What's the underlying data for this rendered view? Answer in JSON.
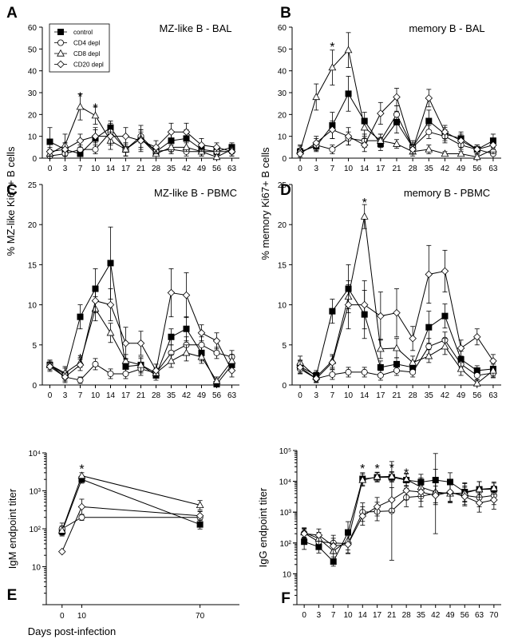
{
  "chart_data": [
    {
      "panel": "A",
      "type": "line",
      "title": "MZ-like B - BAL",
      "xlabel": "",
      "ylabel": "",
      "x_scale": "categorical",
      "x": [
        "0",
        "3",
        "7",
        "10",
        "14",
        "17",
        "21",
        "28",
        "35",
        "42",
        "49",
        "56",
        "63"
      ],
      "ylim": [
        0,
        60
      ],
      "yticks": [
        0,
        10,
        20,
        30,
        40,
        50,
        60
      ],
      "legend": {
        "position": "top-left",
        "entries": [
          "control",
          "CD4 depl",
          "CD8 depl",
          "CD20 depl"
        ]
      },
      "series": [
        {
          "name": "control",
          "marker": "square-filled",
          "values": [
            7.5,
            4,
            2,
            9,
            14,
            4,
            9,
            3,
            8,
            9,
            4,
            3,
            5
          ],
          "err": [
            6.5,
            3,
            2,
            5,
            3,
            3,
            6,
            2,
            4,
            4,
            2,
            2,
            2
          ]
        },
        {
          "name": "CD4 depl",
          "marker": "circle-open",
          "values": [
            1,
            2,
            4,
            4,
            12,
            4,
            10,
            3,
            4,
            3,
            3,
            3,
            3
          ],
          "err": [
            1,
            2,
            2,
            2,
            4,
            3,
            3,
            2,
            2,
            2,
            2,
            2,
            2
          ]
        },
        {
          "name": "CD8 depl",
          "marker": "triangle-open",
          "values": [
            2,
            6,
            23.5,
            19.5,
            8,
            4,
            9,
            2,
            5,
            5,
            3,
            0.5,
            4
          ],
          "err": [
            2,
            5,
            6,
            4,
            4,
            3,
            4,
            2,
            2,
            2,
            2,
            1,
            2
          ]
        },
        {
          "name": "CD20 depl",
          "marker": "diamond-open",
          "values": [
            3,
            4,
            8,
            10,
            10,
            10,
            8,
            5,
            12,
            12,
            6,
            5,
            3
          ],
          "err": [
            2,
            3,
            3,
            3,
            4,
            4,
            4,
            3,
            4,
            4,
            3,
            2,
            2
          ]
        }
      ],
      "annotations": [
        {
          "text": "*",
          "x": "7",
          "y": 29
        },
        {
          "text": "*",
          "x": "10",
          "y": 24
        }
      ]
    },
    {
      "panel": "B",
      "type": "line",
      "title": "memory B - BAL",
      "xlabel": "",
      "ylabel": "",
      "x_scale": "categorical",
      "x": [
        "0",
        "3",
        "7",
        "10",
        "14",
        "17",
        "21",
        "28",
        "35",
        "42",
        "49",
        "56",
        "63"
      ],
      "ylim": [
        0,
        60
      ],
      "yticks": [
        0,
        10,
        20,
        30,
        40,
        50,
        60
      ],
      "series": [
        {
          "name": "control",
          "marker": "square-filled",
          "values": [
            3,
            5.5,
            15,
            29.5,
            17,
            6.5,
            16.5,
            5,
            17,
            11,
            9,
            4,
            8
          ],
          "err": [
            3,
            2,
            6,
            8,
            4,
            3,
            5,
            3,
            5,
            3,
            3,
            2,
            3
          ]
        },
        {
          "name": "CD4 depl",
          "marker": "circle-open",
          "values": [
            2.5,
            6,
            4,
            9,
            8,
            8,
            20,
            5,
            12,
            10,
            6,
            4,
            2
          ],
          "err": [
            2,
            3,
            2,
            3,
            3,
            3,
            4,
            2,
            3,
            3,
            2,
            2,
            2
          ]
        },
        {
          "name": "CD8 depl",
          "marker": "triangle-open",
          "values": [
            3.5,
            28,
            41.5,
            49.5,
            14,
            8,
            6.5,
            3,
            4,
            2,
            2,
            0.5,
            4
          ],
          "err": [
            2,
            6,
            8,
            8,
            4,
            3,
            2,
            2,
            2,
            1,
            1,
            1,
            2
          ]
        },
        {
          "name": "CD20 depl",
          "marker": "diamond-open",
          "values": [
            2,
            7,
            13,
            10,
            6,
            20.5,
            28,
            4,
            27.5,
            12,
            8,
            4,
            6
          ],
          "err": [
            2,
            3,
            4,
            4,
            3,
            5,
            4,
            2,
            4,
            3,
            3,
            2,
            2
          ]
        }
      ],
      "annotations": [
        {
          "text": "*",
          "x": "7",
          "y": 52
        }
      ]
    },
    {
      "panel": "C",
      "type": "line",
      "title": "MZ-like B - PBMC",
      "xlabel": "",
      "ylabel": "",
      "x_scale": "categorical",
      "x": [
        "0",
        "3",
        "7",
        "10",
        "14",
        "17",
        "21",
        "28",
        "35",
        "42",
        "49",
        "56",
        "63"
      ],
      "ylim": [
        0,
        25
      ],
      "yticks": [
        0,
        5,
        10,
        15,
        20,
        25
      ],
      "series": [
        {
          "name": "control",
          "marker": "square-filled",
          "values": [
            2.5,
            1.3,
            8.5,
            12,
            15.2,
            2.3,
            2.5,
            1.2,
            6,
            7,
            4,
            0.1,
            2.5
          ],
          "err": [
            0.6,
            1,
            1.5,
            2.5,
            4.5,
            1,
            1,
            0.6,
            1,
            1.5,
            1,
            0.3,
            0.8
          ]
        },
        {
          "name": "CD4 depl",
          "marker": "circle-open",
          "values": [
            2.5,
            1,
            0.6,
            2.6,
            1.4,
            1.4,
            2,
            1.5,
            4,
            5,
            5,
            4,
            3.5
          ],
          "err": [
            0.6,
            0.5,
            0.4,
            0.7,
            0.6,
            0.6,
            0.8,
            0.6,
            1,
            1,
            1,
            0.7,
            0.8
          ]
        },
        {
          "name": "CD8 depl",
          "marker": "triangle-open",
          "values": [
            2.5,
            1.5,
            2.8,
            9.5,
            6.5,
            3,
            2.5,
            1.5,
            3,
            4,
            3.5,
            0.5,
            3
          ],
          "err": [
            0.6,
            0.6,
            0.6,
            1.5,
            1.2,
            0.8,
            0.8,
            0.6,
            0.8,
            1,
            0.8,
            0.5,
            0.8
          ]
        },
        {
          "name": "CD20 depl",
          "marker": "diamond-open",
          "values": [
            2.3,
            1,
            2.5,
            10.5,
            10,
            5.2,
            5.2,
            1.8,
            11.5,
            11.2,
            6.5,
            5.5,
            1.8
          ],
          "err": [
            0.6,
            0.5,
            0.7,
            1.5,
            2,
            2,
            1.5,
            0.8,
            3,
            2.8,
            1,
            1,
            0.8
          ]
        }
      ],
      "annotations": [
        {
          "text": "*",
          "x": "7",
          "y": 3.6
        }
      ]
    },
    {
      "panel": "D",
      "type": "line",
      "title": "memory B - PBMC",
      "xlabel": "",
      "ylabel": "",
      "x_scale": "categorical",
      "x": [
        "0",
        "3",
        "7",
        "10",
        "14",
        "17",
        "21",
        "28",
        "35",
        "42",
        "49",
        "56",
        "63"
      ],
      "ylim": [
        0,
        25
      ],
      "yticks": [
        0,
        5,
        10,
        15,
        20,
        25
      ],
      "series": [
        {
          "name": "control",
          "marker": "square-filled",
          "values": [
            2.3,
            1.2,
            9.2,
            12,
            8.8,
            2.2,
            2.6,
            2.2,
            7.2,
            8.6,
            3.2,
            1.8,
            2
          ],
          "err": [
            0.8,
            0.6,
            1.5,
            3,
            3,
            0.8,
            0.8,
            0.8,
            2,
            1.5,
            1,
            0.6,
            0.8
          ]
        },
        {
          "name": "CD4 depl",
          "marker": "circle-open",
          "values": [
            2,
            0.8,
            1.3,
            1.6,
            1.6,
            1.2,
            1.8,
            1.6,
            4.8,
            5.6,
            2.6,
            1.2,
            1.5
          ],
          "err": [
            0.6,
            0.5,
            0.6,
            0.6,
            0.6,
            0.6,
            0.6,
            0.6,
            1,
            1,
            0.8,
            0.5,
            0.6
          ]
        },
        {
          "name": "CD8 depl",
          "marker": "triangle-open",
          "values": [
            2.8,
            1,
            3,
            11,
            21,
            4.5,
            4.6,
            2.8,
            3.6,
            4.8,
            2,
            0.2,
            1.8
          ],
          "err": [
            0.8,
            0.6,
            0.8,
            1.5,
            1.5,
            1.2,
            1.2,
            0.8,
            0.8,
            1,
            0.8,
            0.4,
            0.8
          ]
        },
        {
          "name": "CD20 depl",
          "marker": "diamond-open",
          "values": [
            2.2,
            0.8,
            2.8,
            10,
            10,
            8.6,
            9,
            5.8,
            13.8,
            14.2,
            4.6,
            6,
            3
          ],
          "err": [
            0.8,
            0.5,
            0.8,
            3,
            3,
            3,
            3,
            1.5,
            3.6,
            2.6,
            1,
            1,
            0.8
          ]
        }
      ],
      "annotations": [
        {
          "text": "*",
          "x": "14",
          "y": 23
        }
      ]
    },
    {
      "panel": "E",
      "type": "line",
      "title": "",
      "xlabel": "Days post-infection",
      "ylabel": "IgM endpoint titer",
      "x_scale": "linear",
      "xlim": [
        -8,
        90
      ],
      "xticks": [
        0,
        10,
        70
      ],
      "y_scale": "log",
      "ylim": [
        1,
        10000
      ],
      "yticks": [
        {
          "value": 10,
          "label": "10"
        },
        {
          "value": 100,
          "label": "10²"
        },
        {
          "value": 1000,
          "label": "10³"
        },
        {
          "value": 10000,
          "label": "10⁴"
        }
      ],
      "series": [
        {
          "name": "control",
          "marker": "square-filled",
          "x": [
            0,
            10,
            70
          ],
          "values": [
            85,
            2000,
            130
          ],
          "err_log": [
            0.12,
            0.1,
            0.12
          ]
        },
        {
          "name": "CD4 depl",
          "marker": "circle-open",
          "x": [
            0,
            10,
            70
          ],
          "values": [
            100,
            200,
            200
          ],
          "err_log": [
            0.15,
            0.08,
            0.15
          ]
        },
        {
          "name": "CD8 depl",
          "marker": "triangle-open",
          "x": [
            0,
            10,
            70
          ],
          "values": [
            90,
            2500,
            420
          ],
          "err_log": [
            0.12,
            0.08,
            0.12
          ]
        },
        {
          "name": "CD20 depl",
          "marker": "diamond-open",
          "x": [
            0,
            10,
            70
          ],
          "values": [
            25,
            380,
            220
          ],
          "err_log": [
            0.03,
            0.2,
            0.12
          ]
        }
      ],
      "annotations": [
        {
          "text": "*",
          "x": 10,
          "y": 4300
        }
      ]
    },
    {
      "panel": "F",
      "type": "line",
      "title": "",
      "xlabel": "",
      "ylabel": "IgG endpoint titer",
      "x_scale": "categorical",
      "x": [
        "0",
        "3",
        "7",
        "10",
        "14",
        "17",
        "21",
        "28",
        "35",
        "42",
        "49",
        "56",
        "63",
        "70"
      ],
      "y_scale": "log",
      "ylim": [
        1,
        100000
      ],
      "yticks": [
        {
          "value": 10,
          "label": "10"
        },
        {
          "value": 100,
          "label": "10²"
        },
        {
          "value": 1000,
          "label": "10³"
        },
        {
          "value": 10000,
          "label": "10⁴"
        },
        {
          "value": 100000,
          "label": "10⁵"
        }
      ],
      "series": [
        {
          "name": "control",
          "marker": "square-filled",
          "values": [
            110,
            75,
            25,
            220,
            12000,
            13500,
            13500,
            11000,
            9500,
            11000,
            9500,
            4500,
            5500,
            5500
          ],
          "err_log": [
            0.25,
            0.2,
            0.15,
            0.35,
            0.2,
            0.15,
            0.15,
            0.2,
            0.25,
            0.35,
            0.3,
            0.3,
            0.25,
            0.2
          ]
        },
        {
          "name": "CD4 depl",
          "marker": "circle-open",
          "values": [
            210,
            110,
            100,
            95,
            1000,
            1050,
            1100,
            3000,
            3300,
            4000,
            4300,
            3500,
            3000,
            3500
          ],
          "err_log": [
            0.15,
            0.2,
            0.25,
            0.3,
            0.3,
            0.3,
            1.6,
            0.3,
            0.35,
            1.3,
            0.3,
            0.3,
            0.3,
            0.3
          ]
        },
        {
          "name": "CD8 depl",
          "marker": "triangle-open",
          "values": [
            220,
            140,
            55,
            120,
            11000,
            14000,
            14500,
            11500,
            6500,
            4500,
            4000,
            4200,
            5500,
            6000
          ],
          "err_log": [
            0.15,
            0.2,
            0.25,
            0.3,
            0.2,
            0.15,
            0.15,
            0.2,
            0.3,
            0.35,
            0.3,
            0.3,
            0.25,
            0.2
          ]
        },
        {
          "name": "CD20 depl",
          "marker": "diamond-open",
          "values": [
            200,
            180,
            80,
            90,
            750,
            1500,
            2500,
            5000,
            4500,
            3500,
            4500,
            3200,
            2000,
            2500
          ],
          "err_log": [
            0.15,
            0.2,
            0.25,
            0.3,
            0.3,
            0.3,
            0.4,
            0.3,
            0.3,
            0.3,
            0.3,
            0.3,
            0.3,
            0.3
          ]
        }
      ],
      "annotations": [
        {
          "text": "*",
          "x": "14",
          "y": 30000
        },
        {
          "text": "*",
          "x": "17",
          "y": 30000
        },
        {
          "text": "*",
          "x": "21",
          "y": 32000
        },
        {
          "text": "*",
          "x": "28",
          "y": 22000
        }
      ]
    }
  ],
  "shared_labels": {
    "ylabel_top": "% MZ-like Ki67+ B cells",
    "ylabel_top_right": "% memory Ki67+ B cells"
  }
}
